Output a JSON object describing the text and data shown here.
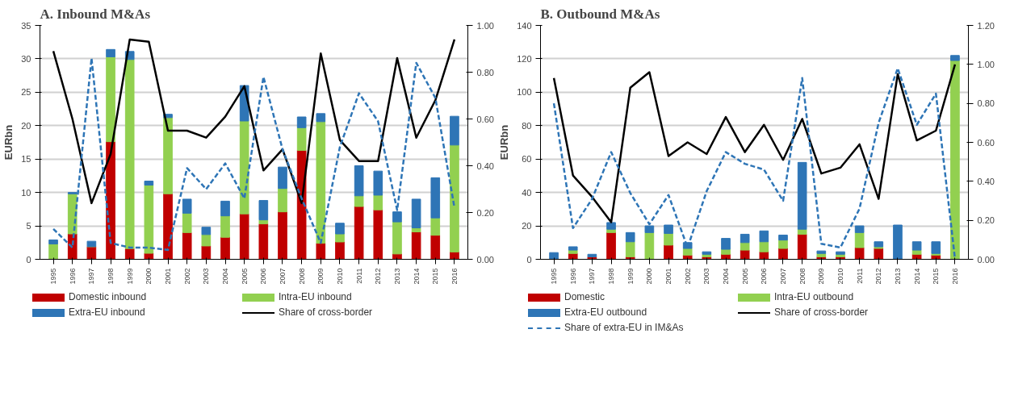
{
  "chart_data": [
    {
      "type": "bar",
      "title": "A.   Inbound M&As",
      "ylabel": "EURbn",
      "stacked": true,
      "grid": "y",
      "legend": "bottom",
      "categories": [
        "1995",
        "1996",
        "1997",
        "1998",
        "1999",
        "2000",
        "2001",
        "2002",
        "2003",
        "2004",
        "2005",
        "2006",
        "2007",
        "2008",
        "2009",
        "2010",
        "2011",
        "2012",
        "2013",
        "2014",
        "2015",
        "2016"
      ],
      "ylim": [
        0,
        35
      ],
      "yticks": [
        0,
        5,
        10,
        15,
        20,
        25,
        30,
        35
      ],
      "y2lim": [
        0,
        1
      ],
      "y2ticks": [
        {
          "value": 0,
          "label": "0.00"
        },
        {
          "value": 0.2,
          "label": "0.20"
        },
        {
          "value": 0.4,
          "label": "0.40"
        },
        {
          "value": 0.6,
          "label": "0.60"
        },
        {
          "value": 0.8,
          "label": "0.80"
        },
        {
          "value": 1,
          "label": "1.00"
        }
      ],
      "series": [
        {
          "name": "Domestic inbound",
          "color": "#c00000",
          "values": [
            0,
            3.8,
            1.9,
            17.6,
            1.6,
            0.9,
            9.8,
            4.0,
            2.0,
            3.3,
            6.8,
            5.3,
            7.1,
            16.3,
            2.4,
            2.6,
            7.9,
            7.4,
            0.8,
            4.1,
            3.6,
            1.1
          ]
        },
        {
          "name": "Intra-EU inbound",
          "color": "#92d050",
          "values": [
            2.3,
            6.0,
            0,
            12.7,
            28.3,
            10.2,
            11.4,
            2.9,
            1.7,
            3.2,
            13.9,
            0.6,
            3.5,
            3.4,
            18.2,
            1.2,
            1.6,
            2.2,
            4.8,
            0.6,
            2.6,
            16.0
          ]
        },
        {
          "name": "Extra-EU inbound",
          "color": "#2e75b6",
          "values": [
            0.6,
            0.2,
            0.8,
            1.1,
            1.2,
            0.6,
            0.5,
            2.1,
            1.1,
            2.2,
            5.3,
            2.9,
            3.2,
            1.6,
            1.2,
            1.6,
            4.5,
            3.6,
            1.5,
            4.3,
            6.0,
            4.3
          ]
        },
        {
          "name": "Share of cross-border",
          "type": "line",
          "axis": "y2",
          "line_style": "solid",
          "color": "#000000",
          "values": [
            0.89,
            0.6,
            0.24,
            0.45,
            0.94,
            0.93,
            0.55,
            0.55,
            0.52,
            0.61,
            0.74,
            0.38,
            0.47,
            0.24,
            0.88,
            0.51,
            0.42,
            0.42,
            0.86,
            0.52,
            0.68,
            0.94
          ]
        },
        {
          "type": "line",
          "axis": "y2",
          "line_style": "dashed",
          "color": "#2e75b6",
          "values": [
            0.13,
            0.05,
            0.86,
            0.07,
            0.05,
            0.05,
            0.04,
            0.39,
            0.3,
            0.41,
            0.26,
            0.78,
            0.47,
            0.26,
            0.07,
            0.48,
            0.71,
            0.59,
            0.21,
            0.84,
            0.69,
            0.22
          ]
        }
      ]
    },
    {
      "type": "bar",
      "title": "B.   Outbound M&As",
      "ylabel": "EURbn",
      "stacked": true,
      "grid": "y",
      "legend": "bottom",
      "categories": [
        "1995",
        "1996",
        "1997",
        "1998",
        "1999",
        "2000",
        "2001",
        "2002",
        "2003",
        "2004",
        "2005",
        "2006",
        "2007",
        "2008",
        "2009",
        "2010",
        "2011",
        "2012",
        "2013",
        "2014",
        "2015",
        "2016"
      ],
      "ylim": [
        0,
        140
      ],
      "yticks": [
        0,
        20,
        40,
        60,
        80,
        100,
        120,
        140
      ],
      "y2lim": [
        0,
        1.2
      ],
      "y2ticks": [
        {
          "value": 0,
          "label": "0.00"
        },
        {
          "value": 0.2,
          "label": "0.20"
        },
        {
          "value": 0.4,
          "label": "0.40"
        },
        {
          "value": 0.6,
          "label": "0.60"
        },
        {
          "value": 0.8,
          "label": "0.80"
        },
        {
          "value": 1,
          "label": "1.00"
        },
        {
          "value": 1.2,
          "label": "1.20"
        }
      ],
      "series": [
        {
          "name": "Domestic",
          "color": "#c00000",
          "values": [
            0,
            3.5,
            1.5,
            16,
            1.5,
            0,
            8.5,
            2.5,
            1.5,
            3,
            5.5,
            4.5,
            6.5,
            15,
            1.5,
            1.5,
            7,
            6.5,
            0,
            3,
            2.5,
            0
          ]
        },
        {
          "name": "Intra-EU outbound",
          "color": "#92d050",
          "values": [
            0,
            2,
            0,
            2,
            9,
            16,
            7,
            4,
            1.5,
            3,
            4.5,
            6,
            5,
            3,
            2,
            1.5,
            9,
            1,
            0,
            2.5,
            1,
            119
          ]
        },
        {
          "name": "Extra-EU outbound",
          "color": "#2e75b6",
          "values": [
            4,
            2,
            1.5,
            4,
            5.5,
            4,
            5,
            3.5,
            1.5,
            6.5,
            5,
            6.5,
            3,
            40,
            1.5,
            1.5,
            4,
            3,
            20.5,
            5,
            7,
            3
          ]
        },
        {
          "name": "Share of cross-border",
          "type": "line",
          "axis": "y2",
          "line_style": "solid",
          "color": "#000000",
          "values": [
            0.93,
            0.43,
            0.32,
            0.19,
            0.88,
            0.96,
            0.53,
            0.6,
            0.54,
            0.73,
            0.55,
            0.69,
            0.51,
            0.72,
            0.44,
            0.47,
            0.59,
            0.31,
            0.95,
            0.61,
            0.66,
            1.0
          ]
        },
        {
          "name": "Share of extra-EU in IM&As",
          "type": "line",
          "axis": "y2",
          "line_style": "dashed",
          "color": "#2e75b6",
          "values": [
            0.8,
            0.16,
            0.31,
            0.55,
            0.34,
            0.18,
            0.33,
            0.06,
            0.35,
            0.55,
            0.49,
            0.46,
            0.3,
            0.93,
            0.08,
            0.06,
            0.26,
            0.7,
            0.98,
            0.69,
            0.85,
            0.0
          ]
        }
      ]
    }
  ]
}
